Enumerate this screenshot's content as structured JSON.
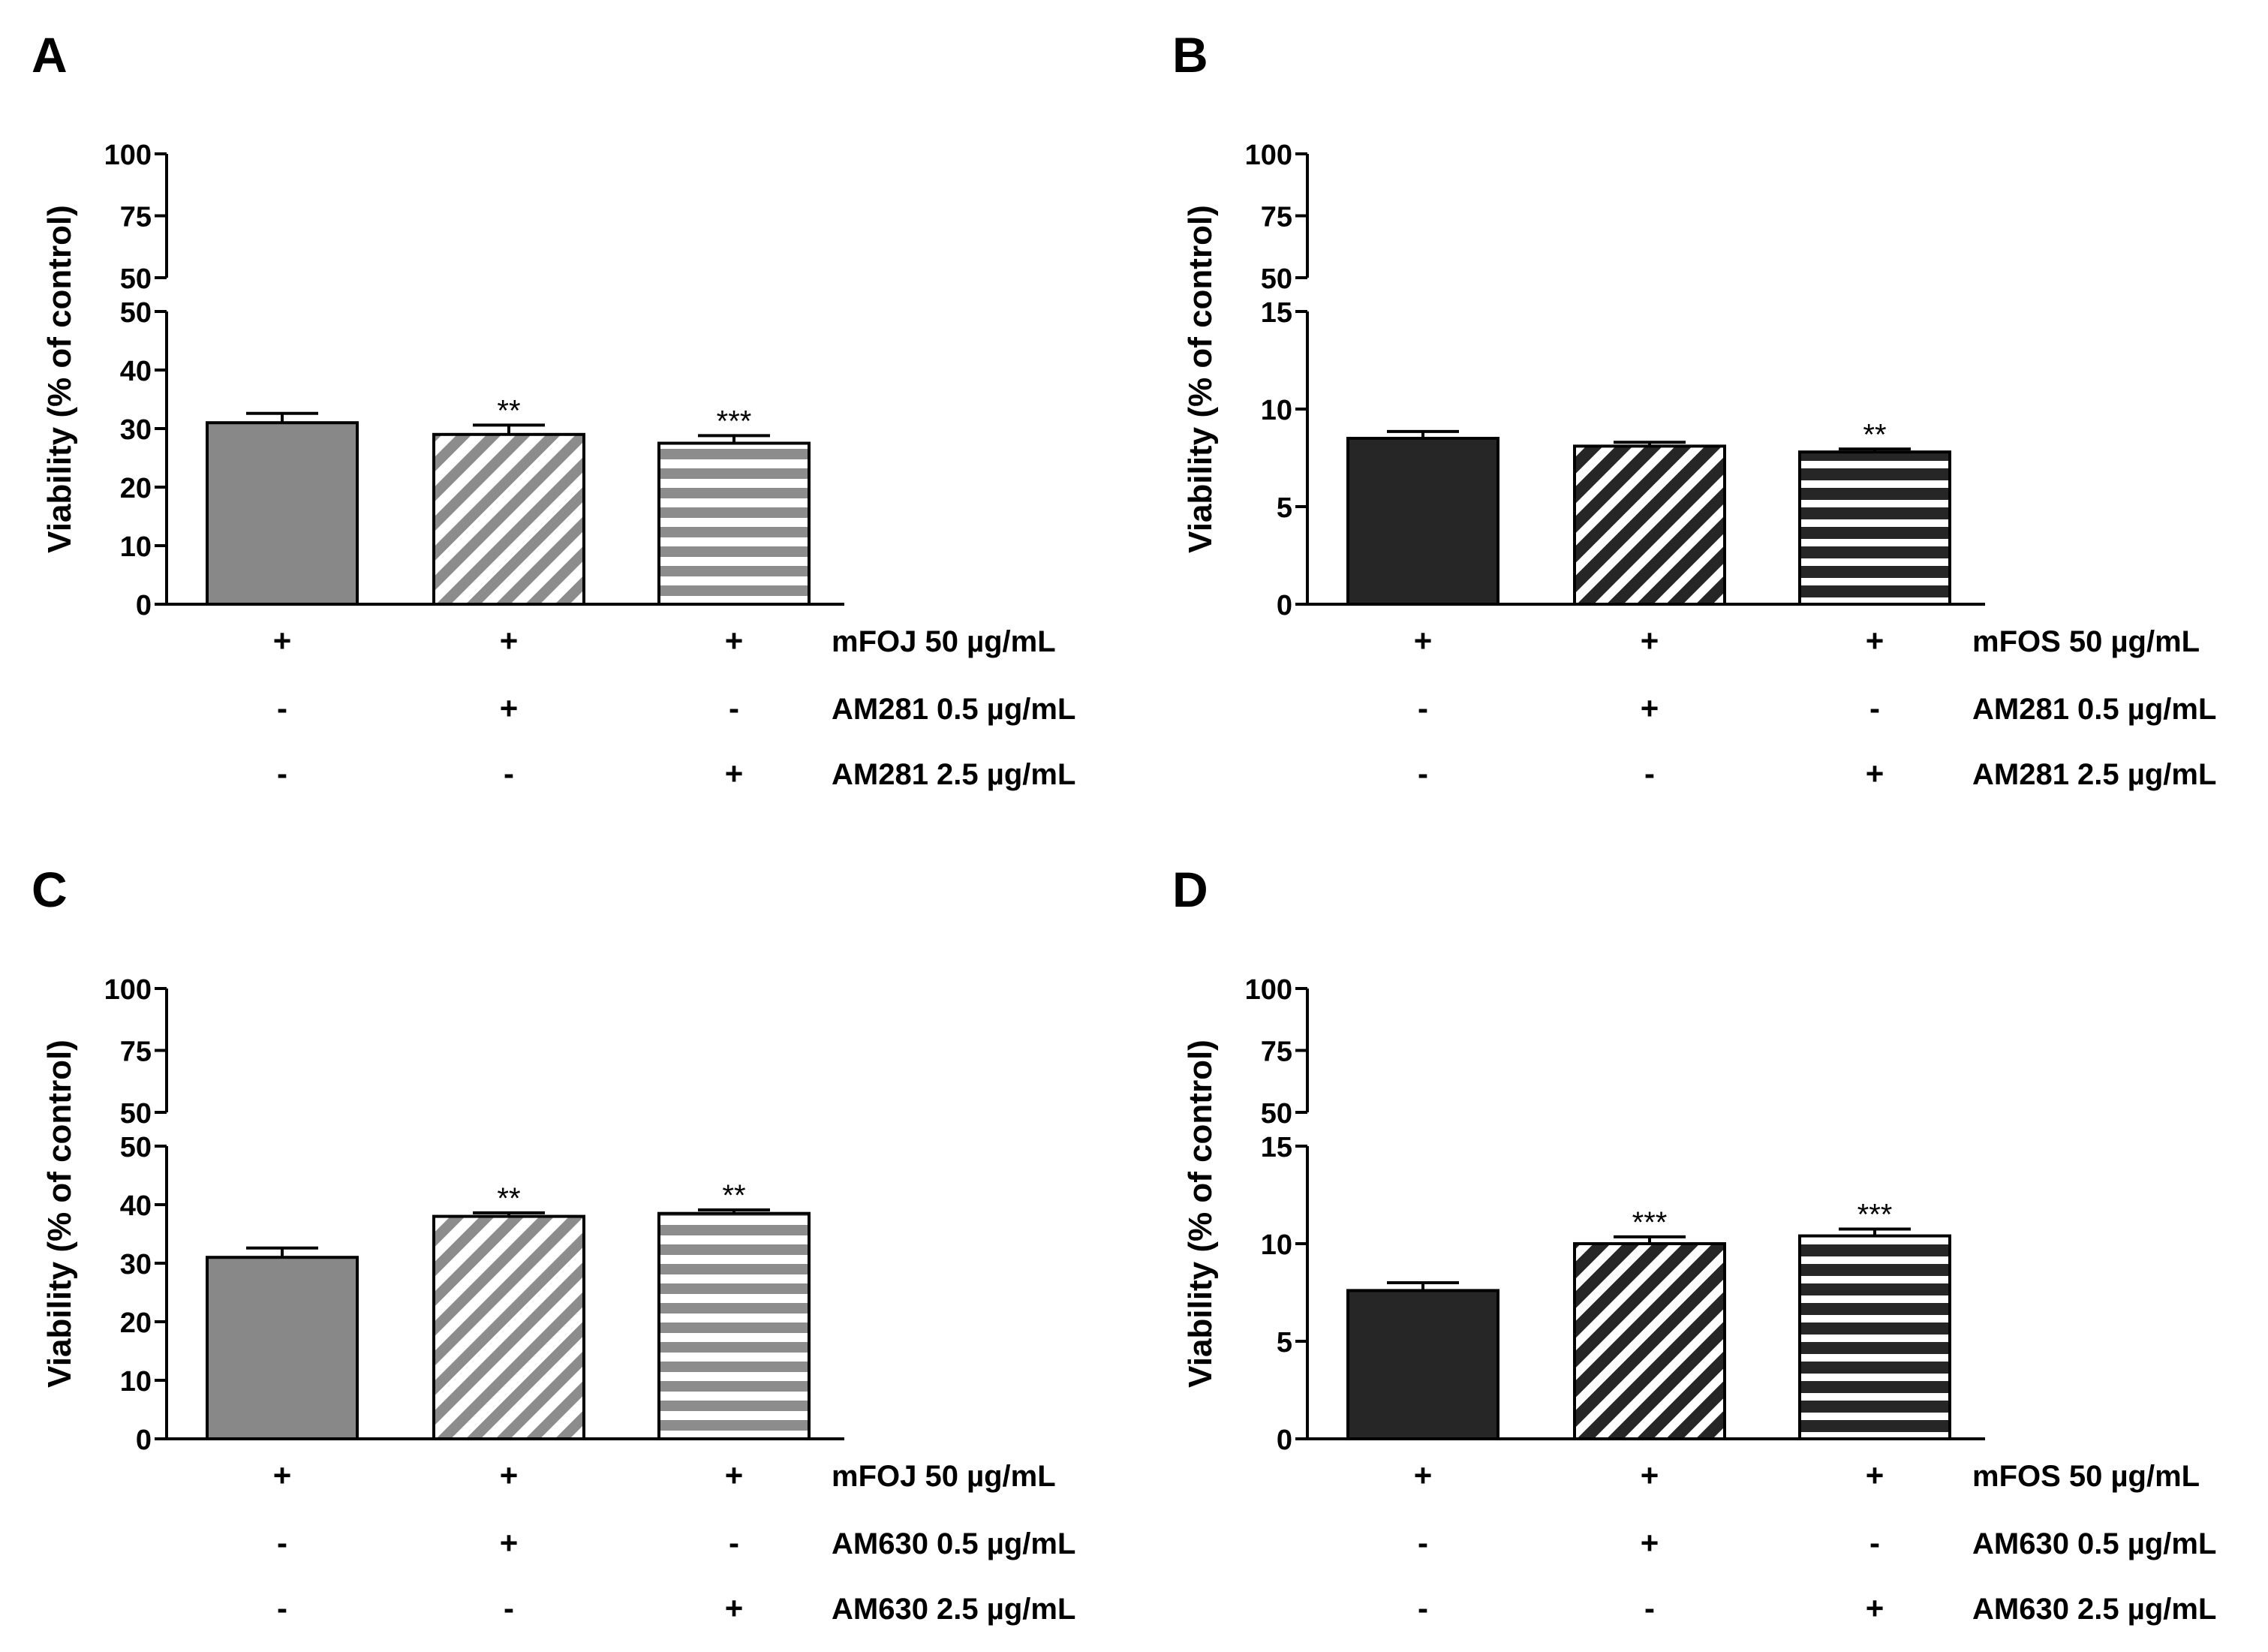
{
  "colors": {
    "axis": "#000000",
    "gray_fill": "#888888",
    "dark_fill": "#262626",
    "white": "#ffffff"
  },
  "chart_data": [
    {
      "panel": "A",
      "type": "bar",
      "ylabel": "Viability (% of control)",
      "y_upper": {
        "ticks": [
          50,
          75,
          100
        ],
        "tick_labels": [
          "50",
          "75",
          "100"
        ],
        "range": [
          50,
          100
        ]
      },
      "y_lower": {
        "ticks": [
          0,
          10,
          20,
          30,
          40,
          50
        ],
        "tick_labels": [
          "0",
          "10",
          "20",
          "30",
          "40",
          "50"
        ],
        "range": [
          0,
          50
        ]
      },
      "series": [
        {
          "name": "mFOJ 50 µg/mL",
          "value": 31.0,
          "error": 1.6,
          "significance": "",
          "pattern": "solid-gray"
        },
        {
          "name": "mFOJ 50 µg/mL + AM281 0.5 µg/mL",
          "value": 29.0,
          "error": 1.6,
          "significance": "**",
          "pattern": "diagonal-gray"
        },
        {
          "name": "mFOJ 50 µg/mL + AM281 2.5 µg/mL",
          "value": 27.5,
          "error": 1.3,
          "significance": "***",
          "pattern": "horizontal-gray"
        }
      ],
      "treatment_rows": [
        {
          "label": "mFOJ 50 µg/mL",
          "signs": [
            "+",
            "+",
            "+"
          ]
        },
        {
          "label": "AM281 0.5 µg/mL",
          "signs": [
            "-",
            "+",
            "-"
          ]
        },
        {
          "label": "AM281 2.5 µg/mL",
          "signs": [
            "-",
            "-",
            "+"
          ]
        }
      ]
    },
    {
      "panel": "B",
      "type": "bar",
      "ylabel": "Viability (% of control)",
      "y_upper": {
        "ticks": [
          50,
          75,
          100
        ],
        "tick_labels": [
          "50",
          "75",
          "100"
        ],
        "range": [
          50,
          100
        ]
      },
      "y_lower": {
        "ticks": [
          0,
          5,
          10,
          15
        ],
        "tick_labels": [
          "0",
          "5",
          "10",
          "15"
        ],
        "range": [
          0,
          15
        ]
      },
      "series": [
        {
          "name": "mFOS 50 µg/mL",
          "value": 8.5,
          "error": 0.35,
          "significance": "",
          "pattern": "solid-dark"
        },
        {
          "name": "mFOS 50 µg/mL + AM281 0.5 µg/mL",
          "value": 8.1,
          "error": 0.2,
          "significance": "",
          "pattern": "diagonal-dark"
        },
        {
          "name": "mFOS 50 µg/mL + AM281 2.5 µg/mL",
          "value": 7.8,
          "error": 0.15,
          "significance": "**",
          "pattern": "horizontal-dark"
        }
      ],
      "treatment_rows": [
        {
          "label": "mFOS 50 µg/mL",
          "signs": [
            "+",
            "+",
            "+"
          ]
        },
        {
          "label": "AM281 0.5 µg/mL",
          "signs": [
            "-",
            "+",
            "-"
          ]
        },
        {
          "label": "AM281 2.5 µg/mL",
          "signs": [
            "-",
            "-",
            "+"
          ]
        }
      ]
    },
    {
      "panel": "C",
      "type": "bar",
      "ylabel": "Viability (% of control)",
      "y_upper": {
        "ticks": [
          50,
          75,
          100
        ],
        "tick_labels": [
          "50",
          "75",
          "100"
        ],
        "range": [
          50,
          100
        ]
      },
      "y_lower": {
        "ticks": [
          0,
          10,
          20,
          30,
          40,
          50
        ],
        "tick_labels": [
          "0",
          "10",
          "20",
          "30",
          "40",
          "50"
        ],
        "range": [
          0,
          50
        ]
      },
      "series": [
        {
          "name": "mFOJ 50 µg/mL",
          "value": 31.0,
          "error": 1.6,
          "significance": "",
          "pattern": "solid-gray"
        },
        {
          "name": "mFOJ 50 µg/mL + AM630 0.5 µg/mL",
          "value": 38.0,
          "error": 0.6,
          "significance": "**",
          "pattern": "diagonal-gray"
        },
        {
          "name": "mFOJ 50 µg/mL + AM630 2.5 µg/mL",
          "value": 38.5,
          "error": 0.6,
          "significance": "**",
          "pattern": "horizontal-gray"
        }
      ],
      "treatment_rows": [
        {
          "label": "mFOJ 50 µg/mL",
          "signs": [
            "+",
            "+",
            "+"
          ]
        },
        {
          "label": "AM630 0.5 µg/mL",
          "signs": [
            "-",
            "+",
            "-"
          ]
        },
        {
          "label": "AM630 2.5 µg/mL",
          "signs": [
            "-",
            "-",
            "+"
          ]
        }
      ]
    },
    {
      "panel": "D",
      "type": "bar",
      "ylabel": "Viability (% of control)",
      "y_upper": {
        "ticks": [
          50,
          75,
          100
        ],
        "tick_labels": [
          "50",
          "75",
          "100"
        ],
        "range": [
          50,
          100
        ]
      },
      "y_lower": {
        "ticks": [
          0,
          5,
          10,
          15
        ],
        "tick_labels": [
          "0",
          "5",
          "10",
          "15"
        ],
        "range": [
          0,
          15
        ]
      },
      "series": [
        {
          "name": "mFOS 50 µg/mL",
          "value": 7.6,
          "error": 0.4,
          "significance": "",
          "pattern": "solid-dark"
        },
        {
          "name": "mFOS 50 µg/mL + AM630 0.5 µg/mL",
          "value": 10.0,
          "error": 0.35,
          "significance": "***",
          "pattern": "diagonal-dark"
        },
        {
          "name": "mFOS 50 µg/mL + AM630 2.5 µg/mL",
          "value": 10.4,
          "error": 0.35,
          "significance": "***",
          "pattern": "horizontal-dark"
        }
      ],
      "treatment_rows": [
        {
          "label": "mFOS 50 µg/mL",
          "signs": [
            "+",
            "+",
            "+"
          ]
        },
        {
          "label": "AM630 0.5 µg/mL",
          "signs": [
            "-",
            "+",
            "-"
          ]
        },
        {
          "label": "AM630 2.5 µg/mL",
          "signs": [
            "-",
            "-",
            "+"
          ]
        }
      ]
    }
  ]
}
